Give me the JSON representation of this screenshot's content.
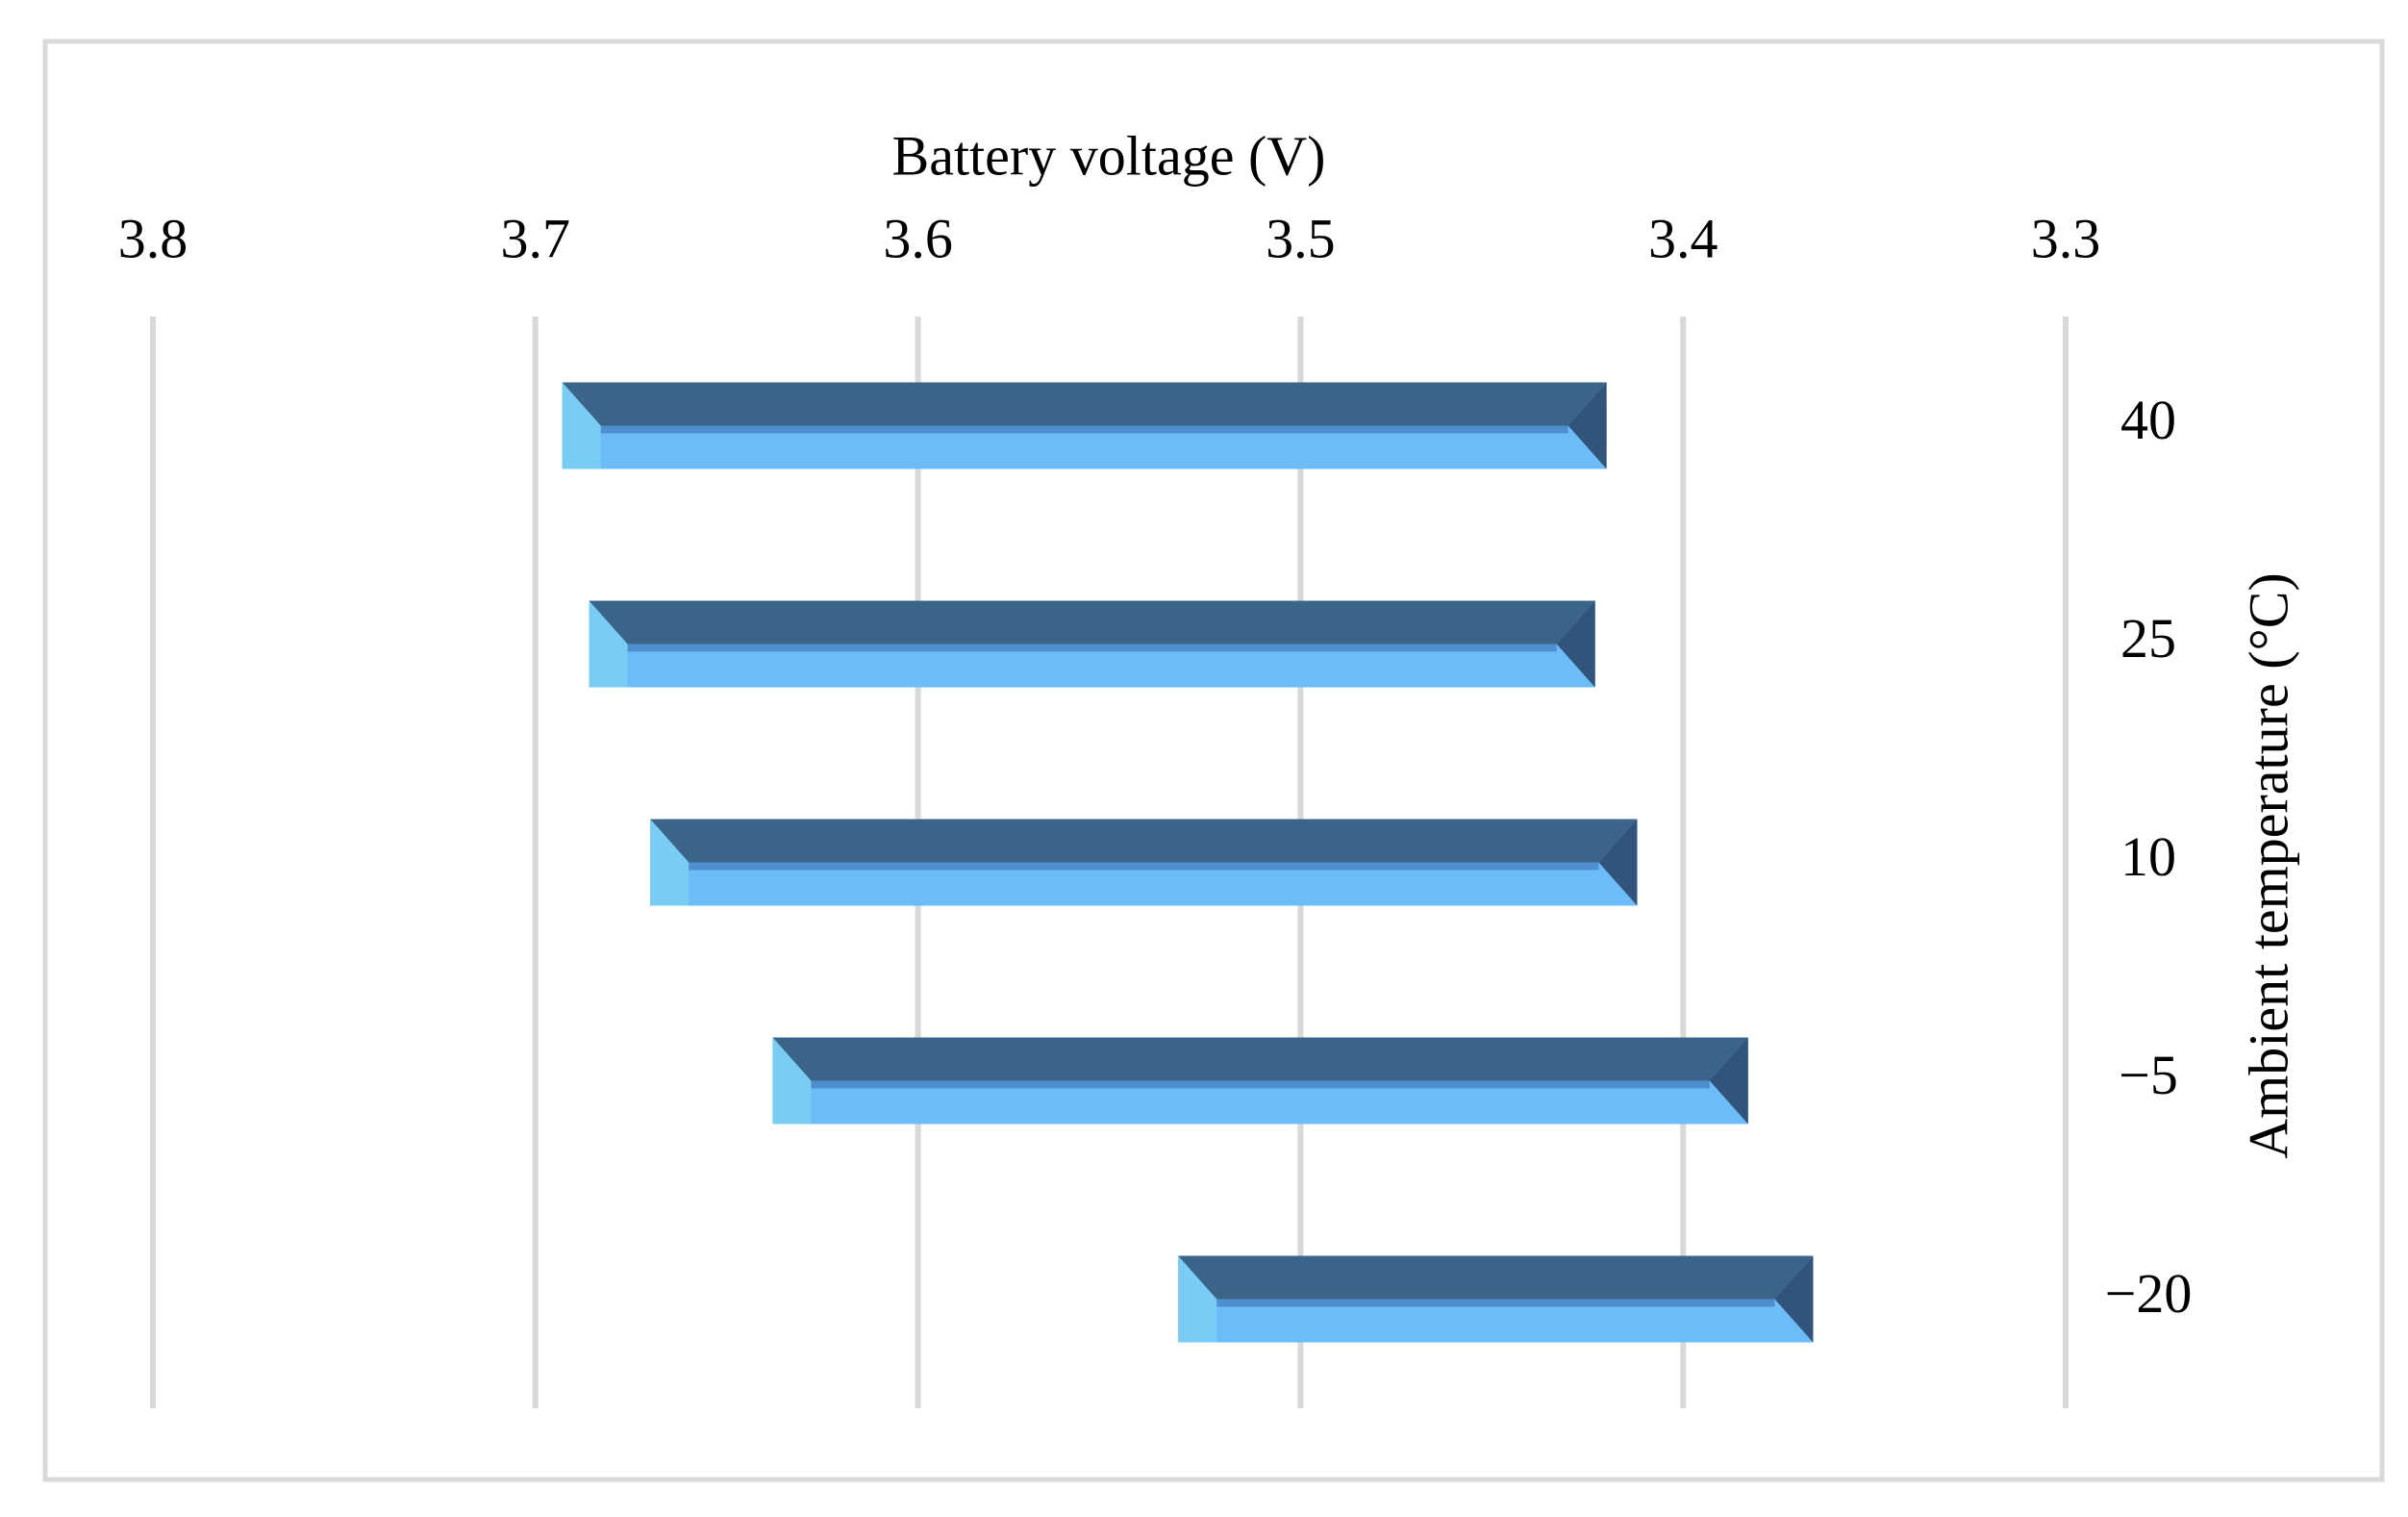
{
  "chart_data": {
    "type": "floating-bar",
    "orientation": "horizontal",
    "x_label": "Battery voltage (V)",
    "y_label": "Ambient temperature  (°C)",
    "categories": [
      "40",
      "25",
      "10",
      "−5",
      "−20"
    ],
    "starts": [
      3.693,
      3.686,
      3.67,
      3.638,
      3.532
    ],
    "ends": [
      3.42,
      3.423,
      3.412,
      3.383,
      3.366
    ],
    "color": "#6cbcf7",
    "xlim": [
      3.8,
      3.3
    ],
    "xticks": [
      3.8,
      3.7,
      3.6,
      3.5,
      3.4,
      3.3
    ],
    "x_axis_position": "top",
    "y_axis_position": "right",
    "grid": true
  }
}
